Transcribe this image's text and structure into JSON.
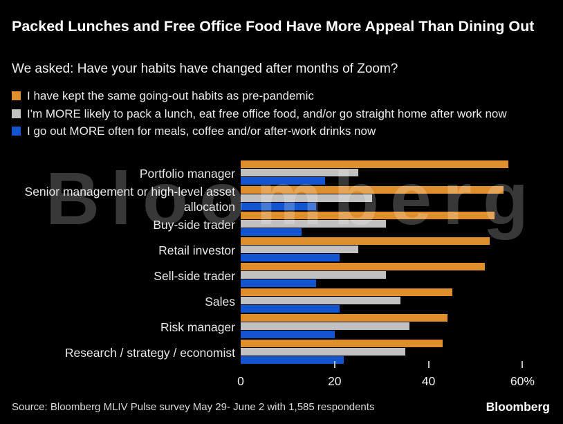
{
  "header": {
    "title": "Packed Lunches and Free Office Food Have More Appeal Than Dining Out",
    "subtitle": "We asked: Have your habits have changed after months of Zoom?"
  },
  "chart_data": {
    "type": "bar",
    "orientation": "horizontal",
    "title": "Packed Lunches and Free Office Food Have More Appeal Than Dining Out",
    "categories": [
      "Portfolio manager",
      "Senior management or high-level asset allocation",
      "Buy-side trader",
      "Retail investor",
      "Sell-side trader",
      "Sales",
      "Risk manager",
      "Research / strategy / economist"
    ],
    "series": [
      {
        "name": "I have kept the same going-out habits as pre-pandemic",
        "color": "#DF8E2C",
        "values": [
          57,
          56,
          54,
          53,
          52,
          45,
          44,
          43
        ]
      },
      {
        "name": "I'm MORE likely to pack a lunch, eat free office food, and/or go straight home after work now",
        "color": "#C1C1C1",
        "values": [
          25,
          28,
          31,
          25,
          31,
          34,
          36,
          35
        ]
      },
      {
        "name": "I go out MORE often for meals, coffee and/or after-work drinks now",
        "color": "#1355CE",
        "values": [
          18,
          16,
          13,
          21,
          16,
          21,
          20,
          22
        ]
      }
    ],
    "xlabel": "",
    "ylabel": "",
    "xlim": [
      0,
      68
    ],
    "x_ticks": [
      0,
      20,
      40,
      60
    ],
    "x_tick_labels": [
      "0",
      "20",
      "40",
      "60%"
    ],
    "grid": false,
    "legend_position": "top",
    "unit": "%"
  },
  "watermark": {
    "text": "Bloomberg"
  },
  "footer": {
    "source": "Source: Bloomberg MLIV Pulse survey May 29- June 2 with 1,585 respondents",
    "logo": "Bloomberg"
  },
  "colors": {
    "background": "#000000",
    "title_text": "#FFFFFF",
    "body_text": "#EBEBEB",
    "orange_series": "#DF8E2C",
    "gray_series": "#C1C1C1",
    "blue_series": "#1355CE"
  }
}
